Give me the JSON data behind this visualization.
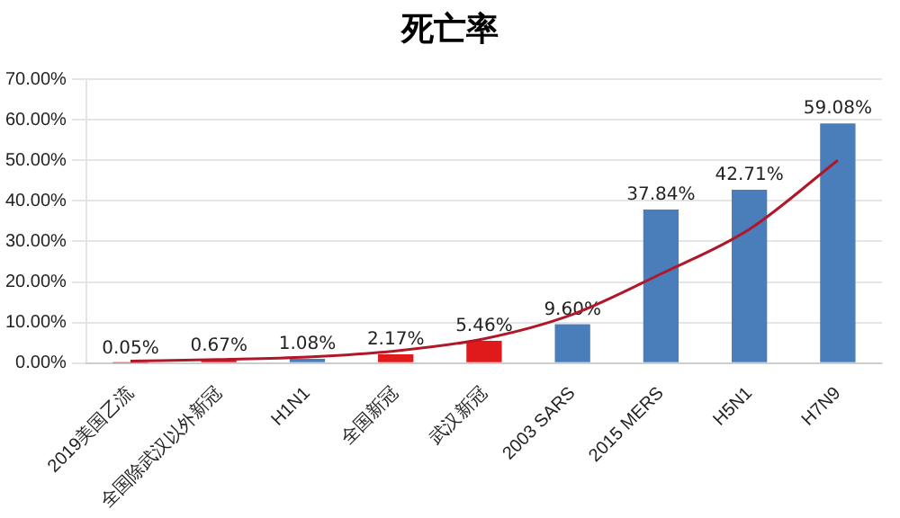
{
  "chart_data": {
    "type": "bar",
    "title": "死亡率",
    "categories": [
      "2019美国乙流",
      "全国除武汉以外新冠",
      "H1N1",
      "全国新冠",
      "武汉新冠",
      "2003 SARS",
      "2015 MERS",
      "H5N1",
      "H7N9"
    ],
    "series": [
      {
        "colors": [
          "#e01a1a",
          "#e01a1a",
          "#4a7ebb",
          "#e01a1a",
          "#e01a1a",
          "#4a7ebb",
          "#4a7ebb",
          "#4a7ebb",
          "#4a7ebb"
        ],
        "values": [
          0.05,
          0.67,
          1.08,
          2.17,
          5.46,
          9.6,
          37.84,
          42.71,
          59.08
        ],
        "value_labels": [
          "0.05%",
          "0.67%",
          "1.08%",
          "2.17%",
          "5.46%",
          "9.60%",
          "37.84%",
          "42.71%",
          "59.08%"
        ]
      },
      {
        "type": "line",
        "color": "#b0182a",
        "values": [
          0.5,
          0.9,
          1.5,
          3.0,
          6.0,
          12,
          22,
          33,
          50
        ]
      }
    ],
    "ylim": [
      0,
      70
    ],
    "yticks": [
      {
        "value": 0,
        "label": "0.00%"
      },
      {
        "value": 10,
        "label": "10.00%"
      },
      {
        "value": 20,
        "label": "20.00%"
      },
      {
        "value": 30,
        "label": "30.00%"
      },
      {
        "value": 40,
        "label": "40.00%"
      },
      {
        "value": 50,
        "label": "50.00%"
      },
      {
        "value": 60,
        "label": "60.00%"
      },
      {
        "value": 70,
        "label": "70.00%"
      }
    ],
    "grid": "y",
    "legend": false,
    "marker": "none"
  }
}
